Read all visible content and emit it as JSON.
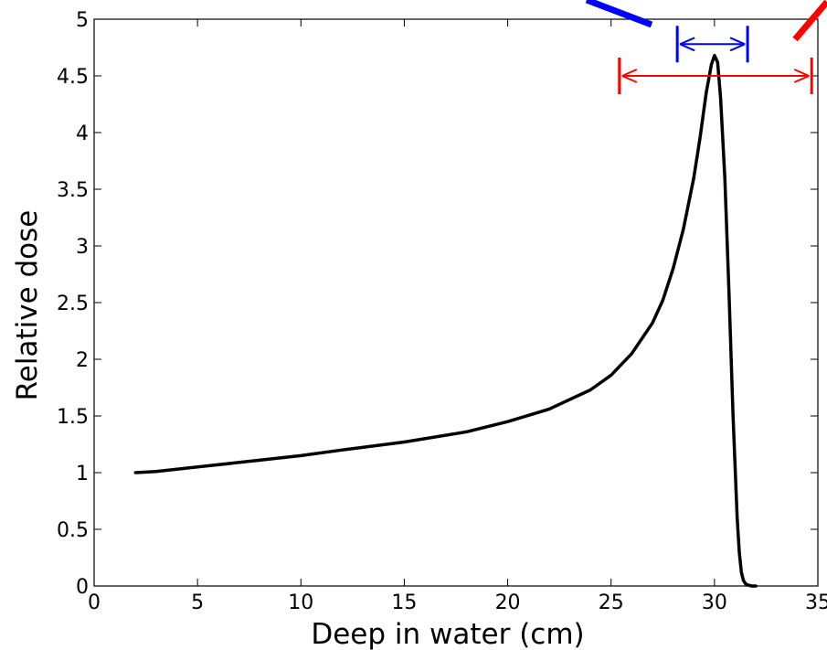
{
  "chart_data": {
    "type": "line",
    "xlabel": "Deep in water (cm)",
    "ylabel": "Relative dose",
    "xlim": [
      0,
      35
    ],
    "ylim": [
      0,
      5
    ],
    "xticks": [
      "0",
      "5",
      "10",
      "15",
      "20",
      "25",
      "30",
      "35"
    ],
    "yticks": [
      "0",
      "0.5",
      "1",
      "1.5",
      "2",
      "2.5",
      "3",
      "3.5",
      "4",
      "4.5",
      "5"
    ],
    "grid": false,
    "legend": "none",
    "series": [
      {
        "color": "#000000",
        "x": [
          2.0,
          3.0,
          5.0,
          8.0,
          10.0,
          12.0,
          15.0,
          18.0,
          20.0,
          22.0,
          24.0,
          25.0,
          26.0,
          27.0,
          27.5,
          28.0,
          28.5,
          29.0,
          29.3,
          29.6,
          29.85,
          30.0,
          30.15,
          30.3,
          30.5,
          30.7,
          30.9,
          31.1,
          31.2,
          31.3,
          31.4,
          31.5,
          31.6,
          31.8,
          32.0
        ],
        "y": [
          1.0,
          1.01,
          1.05,
          1.11,
          1.15,
          1.2,
          1.27,
          1.36,
          1.45,
          1.56,
          1.73,
          1.86,
          2.05,
          2.32,
          2.52,
          2.8,
          3.15,
          3.6,
          3.95,
          4.35,
          4.6,
          4.68,
          4.62,
          4.3,
          3.6,
          2.6,
          1.5,
          0.6,
          0.3,
          0.12,
          0.05,
          0.02,
          0.01,
          0.0,
          0.0
        ]
      }
    ],
    "annotations": [
      {
        "type": "double-arrow",
        "color": "#0000ff",
        "x_from": 28.2,
        "x_to": 31.6,
        "y": 4.78
      },
      {
        "type": "double-arrow",
        "color": "#ff0000",
        "x_from": 25.4,
        "x_to": 34.7,
        "y": 4.5
      }
    ]
  }
}
